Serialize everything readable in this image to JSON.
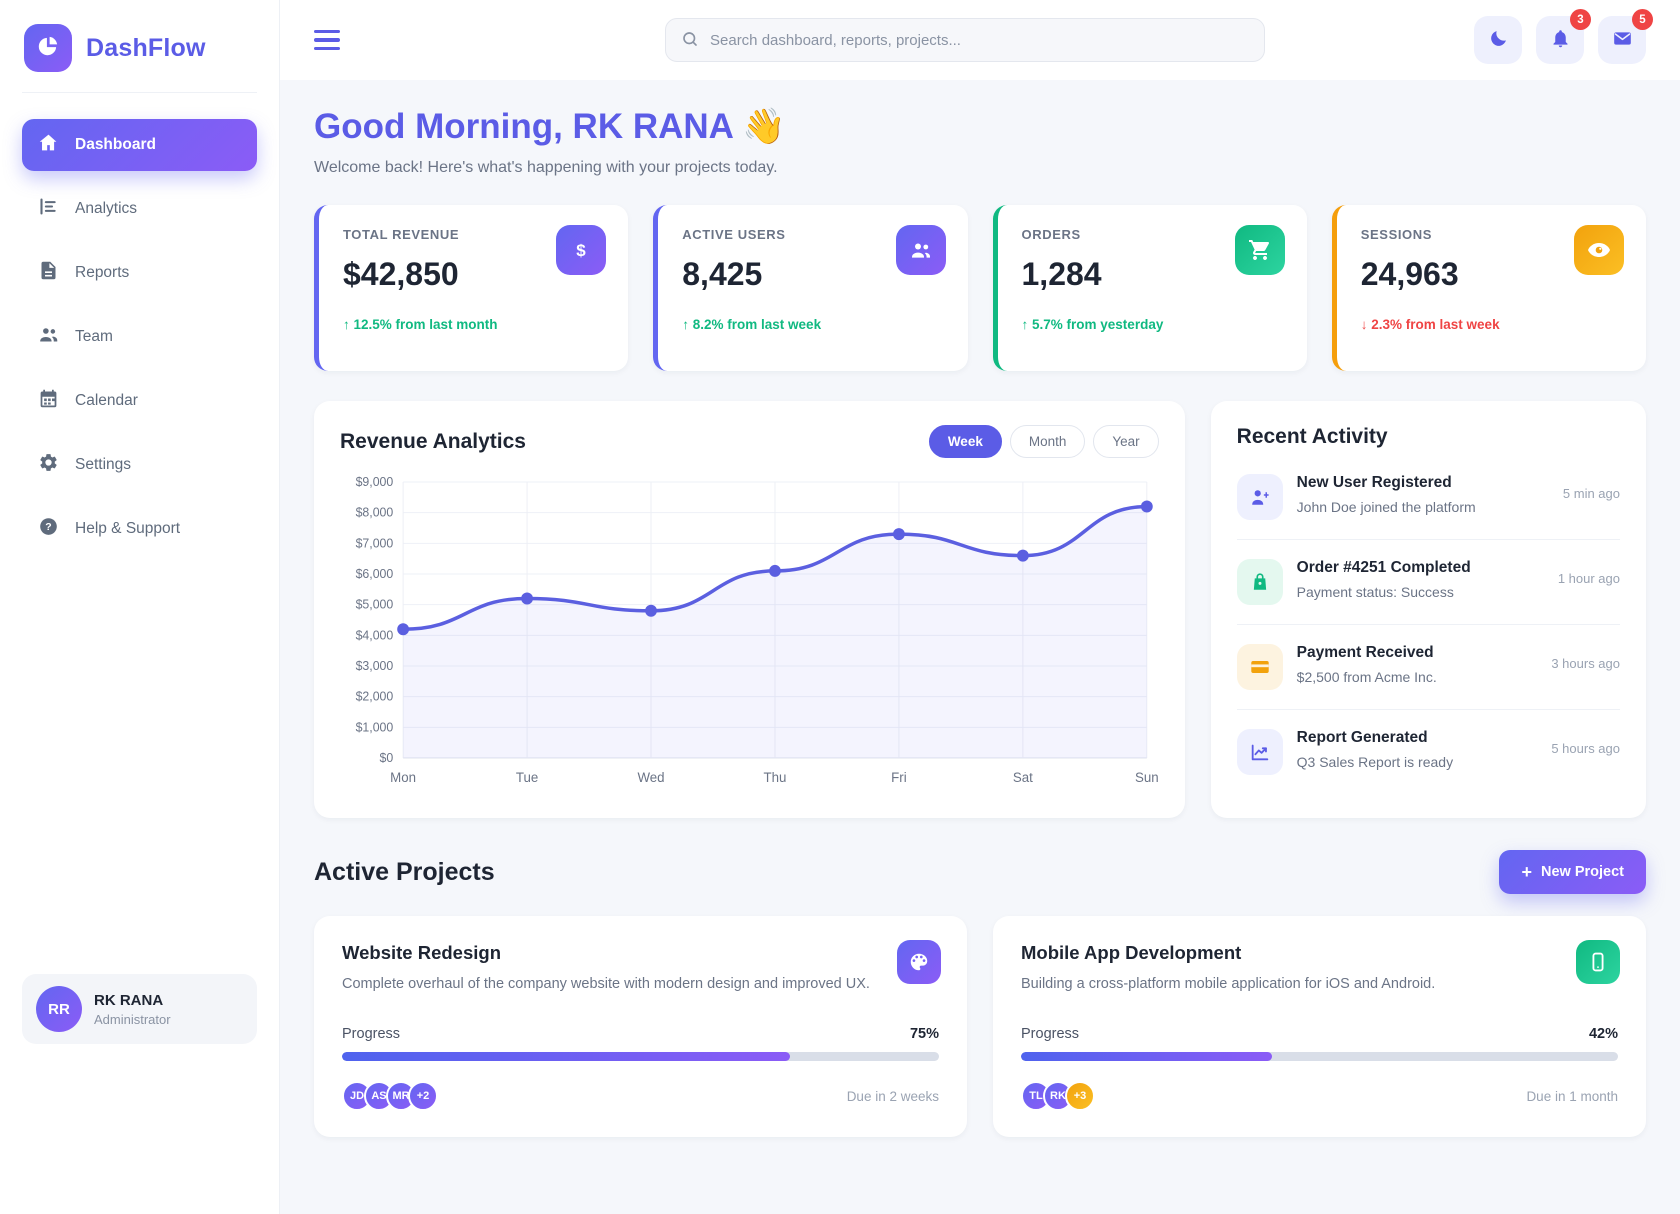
{
  "sidebar": {
    "brand": "DashFlow",
    "items": [
      {
        "label": "Dashboard"
      },
      {
        "label": "Analytics"
      },
      {
        "label": "Reports"
      },
      {
        "label": "Team"
      },
      {
        "label": "Calendar"
      },
      {
        "label": "Settings"
      },
      {
        "label": "Help & Support"
      }
    ],
    "user": {
      "initials": "RR",
      "name": "RK RANA",
      "role": "Administrator"
    }
  },
  "topbar": {
    "search_placeholder": "Search dashboard, reports, projects...",
    "notification_count": "3",
    "message_count": "5"
  },
  "header": {
    "greeting": "Good Morning, RK RANA 👋",
    "subtitle": "Welcome back! Here's what's happening with your projects today."
  },
  "stats": [
    {
      "label": "TOTAL REVENUE",
      "value": "$42,850",
      "arrow": "↑",
      "change": "12.5% from last month"
    },
    {
      "label": "ACTIVE USERS",
      "value": "8,425",
      "arrow": "↑",
      "change": "8.2% from last week"
    },
    {
      "label": "ORDERS",
      "value": "1,284",
      "arrow": "↑",
      "change": "5.7% from yesterday"
    },
    {
      "label": "SESSIONS",
      "value": "24,963",
      "arrow": "↓",
      "change": "2.3% from last week"
    }
  ],
  "chart_data": {
    "type": "line",
    "title": "Revenue Analytics",
    "toggles": [
      "Week",
      "Month",
      "Year"
    ],
    "active_toggle": "Week",
    "x": [
      "Mon",
      "Tue",
      "Wed",
      "Thu",
      "Fri",
      "Sat",
      "Sun"
    ],
    "values": [
      4200,
      5200,
      4800,
      6100,
      7300,
      6600,
      8200
    ],
    "ylim": [
      0,
      9000
    ],
    "ytick_step": 1000,
    "ytick_labels": [
      "$0",
      "$1,000",
      "$2,000",
      "$3,000",
      "$4,000",
      "$5,000",
      "$6,000",
      "$7,000",
      "$8,000",
      "$9,000"
    ],
    "line_color": "#5b5fe0",
    "fill_color": "rgba(99,102,241,0.07)",
    "grid": true,
    "xlabel": "",
    "ylabel": ""
  },
  "activity": {
    "title": "Recent Activity",
    "items": [
      {
        "title": "New User Registered",
        "desc": "John Doe joined the platform",
        "time": "5 min ago"
      },
      {
        "title": "Order #4251 Completed",
        "desc": "Payment status: Success",
        "time": "1 hour ago"
      },
      {
        "title": "Payment Received",
        "desc": "$2,500 from Acme Inc.",
        "time": "3 hours ago"
      },
      {
        "title": "Report Generated",
        "desc": "Q3 Sales Report is ready",
        "time": "5 hours ago"
      }
    ]
  },
  "projects": {
    "title": "Active Projects",
    "new_button": {
      "plus": "+",
      "label": "New Project"
    },
    "cards": [
      {
        "title": "Website Redesign",
        "desc": "Complete overhaul of the company website with modern design and improved UX.",
        "progress_label": "Progress",
        "progress_text": "75%",
        "progress_pct": 75,
        "avatars": [
          "JD",
          "AS",
          "MR",
          "+2"
        ],
        "due": "Due in 2 weeks"
      },
      {
        "title": "Mobile App Development",
        "desc": "Building a cross-platform mobile application for iOS and Android.",
        "progress_label": "Progress",
        "progress_text": "42%",
        "progress_pct": 42,
        "avatars": [
          "TL",
          "RK",
          "+3"
        ],
        "due": "Due in 1 month"
      }
    ]
  },
  "colors": {
    "primary": "#6366f1",
    "primary2": "#8b5cf6",
    "green": "#10b981",
    "orange": "#f59e0b",
    "red": "#ef4444"
  }
}
